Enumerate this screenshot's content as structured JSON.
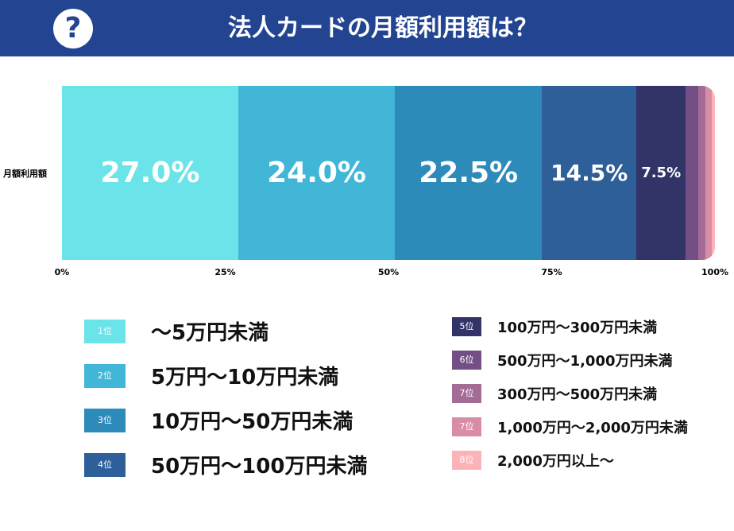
{
  "header": {
    "icon": "question-circle-icon",
    "title": "法人カードの月額利用額は？",
    "bg": "#234591"
  },
  "chart_data": {
    "type": "bar",
    "orientation": "horizontal-stacked-100",
    "title": "法人カードの月額利用額は？",
    "categories": [
      "月額利用額"
    ],
    "xlim": [
      0,
      100
    ],
    "xticks": [
      "0%",
      "25%",
      "50%",
      "75%",
      "100%"
    ],
    "series": [
      {
        "rank": "1位",
        "name": "〜5万円未満",
        "value": 27.0,
        "label": "27.0%",
        "color": "#6ae4e8"
      },
      {
        "rank": "2位",
        "name": "5万円〜10万円未満",
        "value": 24.0,
        "label": "24.0%",
        "color": "#41b6d6"
      },
      {
        "rank": "3位",
        "name": "10万円〜50万円未満",
        "value": 22.5,
        "label": "22.5%",
        "color": "#2d8bba"
      },
      {
        "rank": "4位",
        "name": "50万円〜100万円未満",
        "value": 14.5,
        "label": "14.5%",
        "color": "#2f5f98"
      },
      {
        "rank": "5位",
        "name": "100万円〜300万円未満",
        "value": 7.5,
        "label": "7.5%",
        "color": "#323468"
      },
      {
        "rank": "6位",
        "name": "500万円〜1,000万円未満",
        "value": 2.0,
        "label": "",
        "color": "#744f86"
      },
      {
        "rank": "7位",
        "name": "300万円〜500万円未満",
        "value": 1.0,
        "label": "",
        "color": "#a36c96"
      },
      {
        "rank": "7位",
        "name": "1,000万円〜2,000万円未満",
        "value": 1.0,
        "label": "",
        "color": "#d98ca6"
      },
      {
        "rank": "8位",
        "name": "2,000万円以上〜",
        "value": 0.5,
        "label": "",
        "color": "#fbb3b8"
      }
    ]
  }
}
